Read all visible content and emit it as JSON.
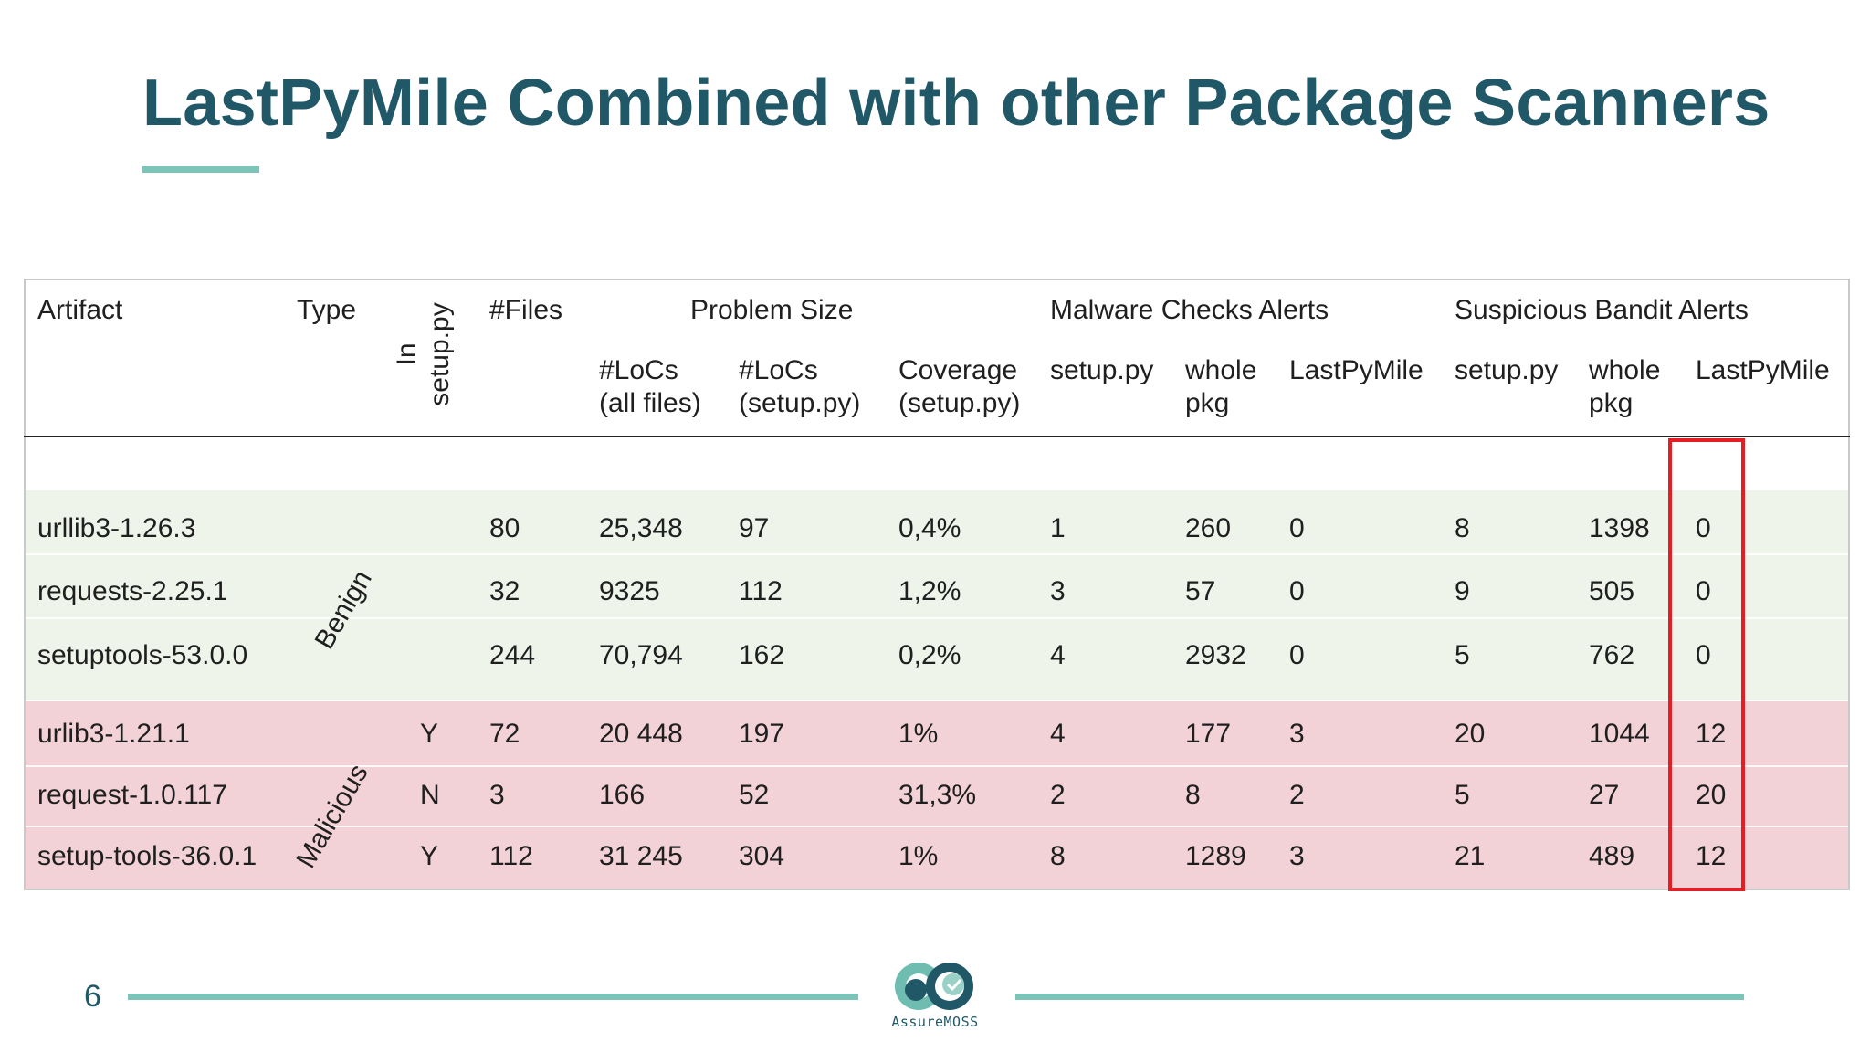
{
  "slide": {
    "title": "LastPyMile Combined with other Package Scanners",
    "page_number": "6",
    "logo_text": "AssureMOSS"
  },
  "table": {
    "headers": {
      "artifact": "Artifact",
      "type": "Type",
      "in_setup": "In setup.py",
      "files": "#Files",
      "problem_size": "Problem Size",
      "locs_all": "#LoCs (all files)",
      "locs_setup": "#LoCs (setup.py)",
      "coverage": "Coverage (setup.py)",
      "malware_group": "Malware Checks Alerts",
      "malware_setup": "setup.py",
      "malware_whole": "whole pkg",
      "malware_lpm": "LastPyMile",
      "bandit_group": "Suspicious Bandit Alerts",
      "bandit_setup": "setup.py",
      "bandit_whole": "whole pkg",
      "bandit_lpm": "LastPyMile"
    },
    "type_labels": {
      "benign": "Benign",
      "malicious": "Malicious"
    },
    "rows": [
      [
        "urllib3-1.26.3",
        "",
        "80",
        "25,348",
        "97",
        "0,4%",
        "1",
        "260",
        "0",
        "8",
        "1398",
        "0"
      ],
      [
        "requests-2.25.1",
        "",
        "32",
        "9325",
        "112",
        "1,2%",
        "3",
        "57",
        "0",
        "9",
        "505",
        "0"
      ],
      [
        "setuptools-53.0.0",
        "",
        "244",
        "70,794",
        "162",
        "0,2%",
        "4",
        "2932",
        "0",
        "5",
        "762",
        "0"
      ],
      [
        "urlib3-1.21.1",
        "Y",
        "72",
        "20 448",
        "197",
        "1%",
        "4",
        "177",
        "3",
        "20",
        "1044",
        "12"
      ],
      [
        "request-1.0.117",
        "N",
        "3",
        "166",
        "52",
        "31,3%",
        "2",
        "8",
        "2",
        "5",
        "27",
        "20"
      ],
      [
        "setup-tools-36.0.1",
        "Y",
        "112",
        "31 245",
        "304",
        "1%",
        "8",
        "1289",
        "3",
        "21",
        "489",
        "12"
      ]
    ]
  },
  "colors": {
    "title": "#215868",
    "accent": "#7cc4b8",
    "benign_band": "#eef4ea",
    "malicious_band": "#f3d2d7",
    "highlight": "#e41e24"
  }
}
